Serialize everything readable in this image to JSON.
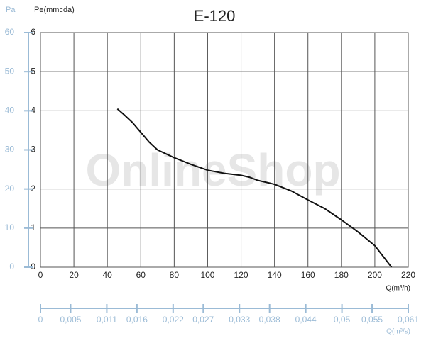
{
  "chart_data": {
    "type": "line",
    "title": "E-120",
    "watermark": "OnlineShop",
    "y_label": "Pe(mmcda)",
    "y2_label": "Pa",
    "x_label": "Q(m³/h)",
    "x2_label": "Q(m³/s)",
    "x": [
      46,
      50,
      55,
      60,
      65,
      70,
      80,
      90,
      100,
      110,
      120,
      125,
      130,
      140,
      150,
      160,
      170,
      180,
      190,
      200,
      210
    ],
    "series": [
      {
        "name": "E-120",
        "color": "#111111",
        "values": [
          4.05,
          3.9,
          3.7,
          3.45,
          3.2,
          3.0,
          2.8,
          2.63,
          2.48,
          2.4,
          2.35,
          2.3,
          2.22,
          2.12,
          1.95,
          1.72,
          1.5,
          1.21,
          0.9,
          0.55,
          0
        ]
      }
    ],
    "xlim": [
      0,
      220
    ],
    "xticks": [
      0,
      20,
      40,
      60,
      80,
      100,
      120,
      140,
      160,
      180,
      200,
      220
    ],
    "ylim": [
      0,
      6
    ],
    "yticks": [
      0,
      1,
      2,
      3,
      4,
      5,
      6
    ],
    "y2lim": [
      0,
      60
    ],
    "y2ticks": [
      0,
      10,
      20,
      30,
      40,
      50,
      60
    ],
    "x2lim": [
      0,
      0.061
    ],
    "x2ticks": [
      0,
      {
        "value": 0.005,
        "label": "0,005"
      },
      {
        "value": 0.011,
        "label": "0,011"
      },
      {
        "value": 0.016,
        "label": "0,016"
      },
      {
        "value": 0.022,
        "label": "0,022"
      },
      {
        "value": 0.027,
        "label": "0,027"
      },
      {
        "value": 0.033,
        "label": "0,033"
      },
      {
        "value": 0.038,
        "label": "0,038"
      },
      {
        "value": 0.044,
        "label": "0,044"
      },
      {
        "value": 0.05,
        "label": "0,05"
      },
      {
        "value": 0.055,
        "label": "0,055"
      },
      {
        "value": 0.061,
        "label": "0,061"
      }
    ],
    "grid": true,
    "axis_color": "#9bbbd6"
  }
}
